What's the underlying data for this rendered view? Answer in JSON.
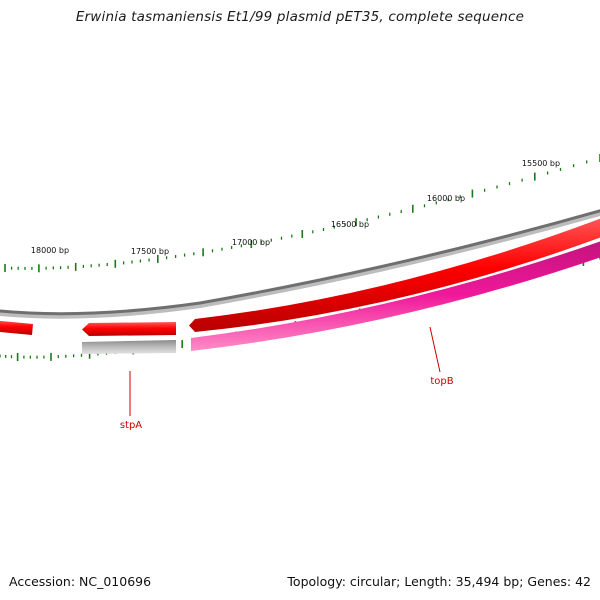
{
  "title": "Erwinia tasmaniensis Et1/99 plasmid pET35, complete sequence",
  "footer": {
    "accession": "Accession: NC_010696",
    "topology": "Topology: circular; Length: 35,494 bp; Genes: 42"
  },
  "ticks": [
    {
      "label": "15500 bp"
    },
    {
      "label": "16000 bp"
    },
    {
      "label": "16500 bp"
    },
    {
      "label": "17000 bp"
    },
    {
      "label": "17500 bp"
    },
    {
      "label": "18000 bp"
    }
  ],
  "genes": [
    {
      "label": "stpA"
    },
    {
      "label": "topB"
    }
  ],
  "colors": {
    "backbone": "#7a7a7a",
    "cds_red": "#ff0000",
    "cds_red_dark": "#c00000",
    "gene_magenta": "#f0189a",
    "gene_magenta_dark": "#b0106f",
    "grey_feature": "#b8b8b8",
    "tick_green": "#1a7a1a",
    "label_red": "#cc0000"
  }
}
